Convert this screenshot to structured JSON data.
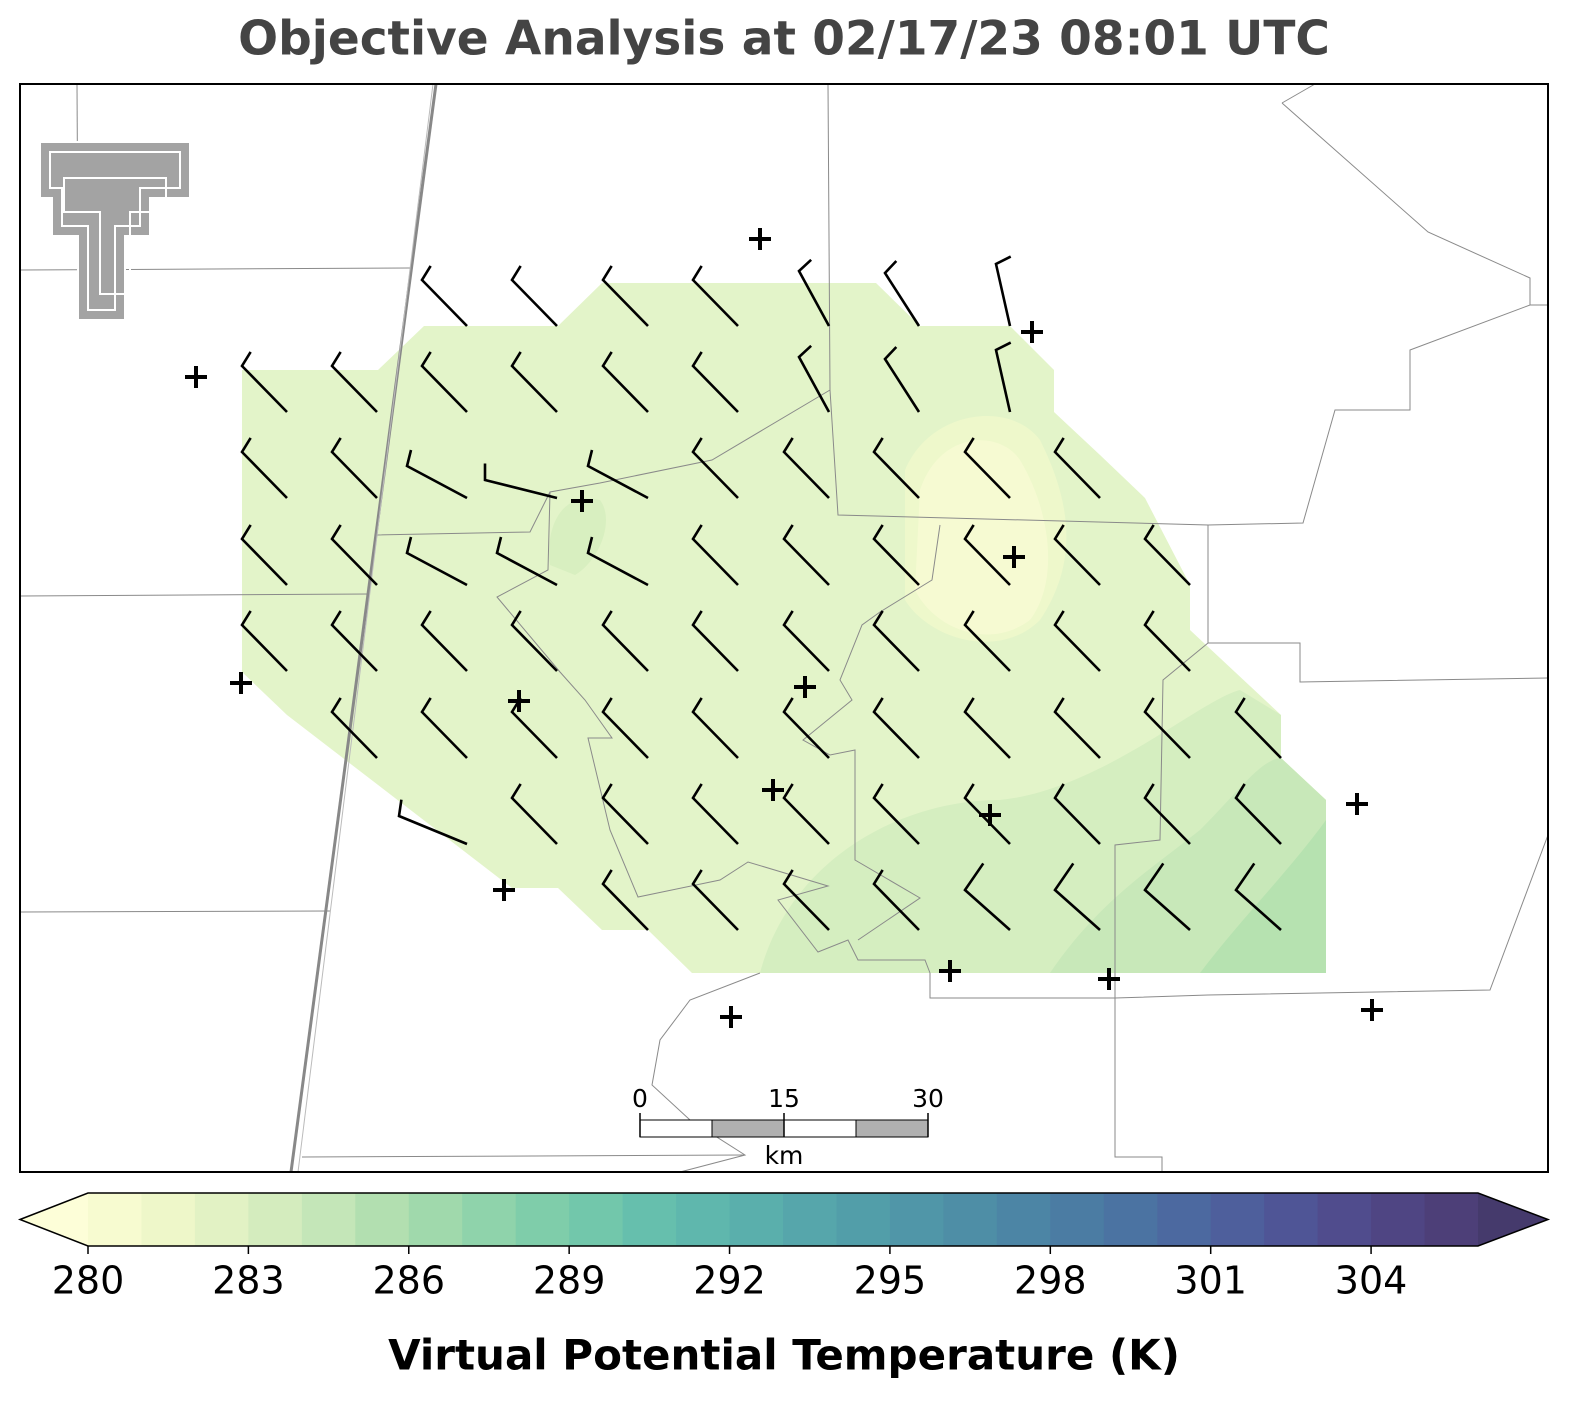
{
  "title": "Objective Analysis at 02/17/23 08:01 UTC",
  "scale_bar": {
    "ticks": [
      0,
      15,
      30
    ],
    "lim": [
      0,
      30
    ],
    "unit": "km"
  },
  "colorbar": {
    "label": "Virtual Potential Temperature (K)",
    "lim": [
      280,
      306
    ],
    "ticks": [
      280,
      283,
      286,
      289,
      292,
      295,
      298,
      301,
      304
    ],
    "colors": [
      "#f7fbd0",
      "#eef7c9",
      "#e2f2c4",
      "#d4ecbe",
      "#c4e6b8",
      "#b2dfb0",
      "#a0d9ac",
      "#8fd3ab",
      "#7fcdaa",
      "#72c7ab",
      "#66bfad",
      "#5fb7ad",
      "#5aafac",
      "#56a6ab",
      "#529ea9",
      "#5096a8",
      "#4e8ea6",
      "#4c85a5",
      "#4b7ca3",
      "#4b73a2",
      "#4c69a0",
      "#4e5f9c",
      "#4f5596",
      "#504c8d",
      "#4f4583",
      "#4d3f78"
    ],
    "under_color": "#fdfed8",
    "over_color": "#453a6c"
  }
}
